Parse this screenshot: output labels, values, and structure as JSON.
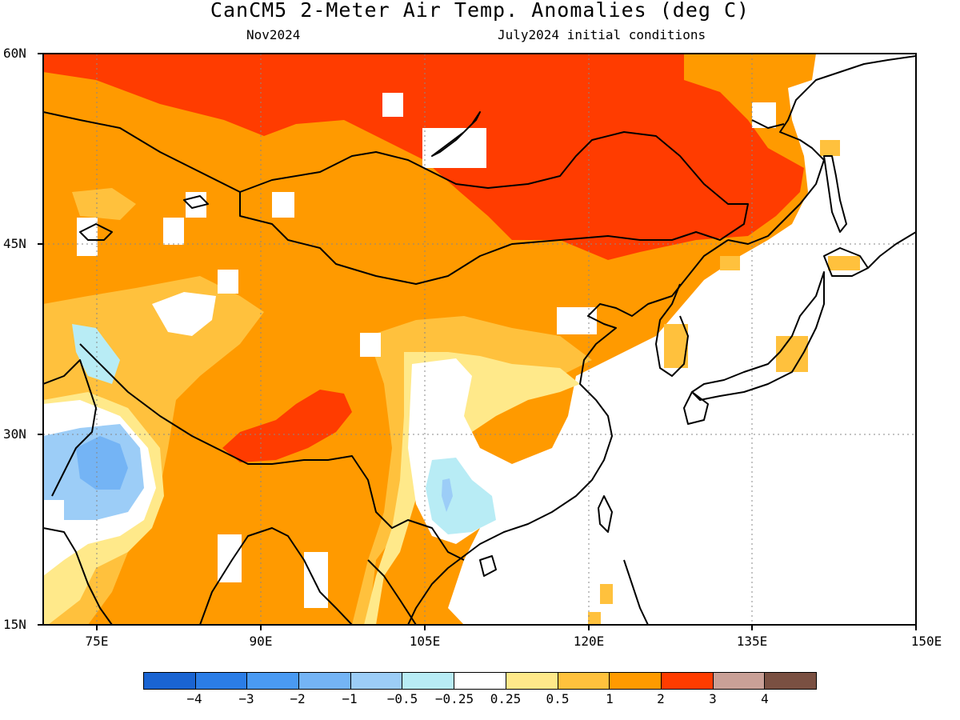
{
  "header": {
    "title": "CanCM5 2-Meter Air Temp. Anomalies (deg C)",
    "month": "Nov2024",
    "init": "July2024 initial conditions"
  },
  "map": {
    "lat_labels": [
      "60N",
      "45N",
      "30N",
      "15N"
    ],
    "lon_labels": [
      "75E",
      "90E",
      "105E",
      "120E",
      "135E",
      "150E"
    ],
    "lon_range": [
      69,
      150
    ],
    "lat_range": [
      15,
      60
    ],
    "gridlines": "dotted"
  },
  "colorbar": {
    "colors": [
      "#1a64d2",
      "#2b7de6",
      "#4a9af2",
      "#74b4f5",
      "#9ccdf7",
      "#b8ecf5",
      "#ffffff",
      "#ffe98a",
      "#ffc13d",
      "#ff9a00",
      "#ff3c00",
      "#c9a097",
      "#7a5042"
    ],
    "labels": [
      "−4",
      "−3",
      "−2",
      "−1",
      "−0.5",
      "−0.25",
      "0.25",
      "0.5",
      "1",
      "2",
      "3",
      "4"
    ]
  },
  "colors": {
    "very_warm": "#ff3c00",
    "warm": "#ff9a00",
    "mild": "#ffc13d",
    "slight": "#ffe98a",
    "cool": "#b8ecf5",
    "cooler": "#9ccdf7",
    "cold": "#74b4f5"
  }
}
